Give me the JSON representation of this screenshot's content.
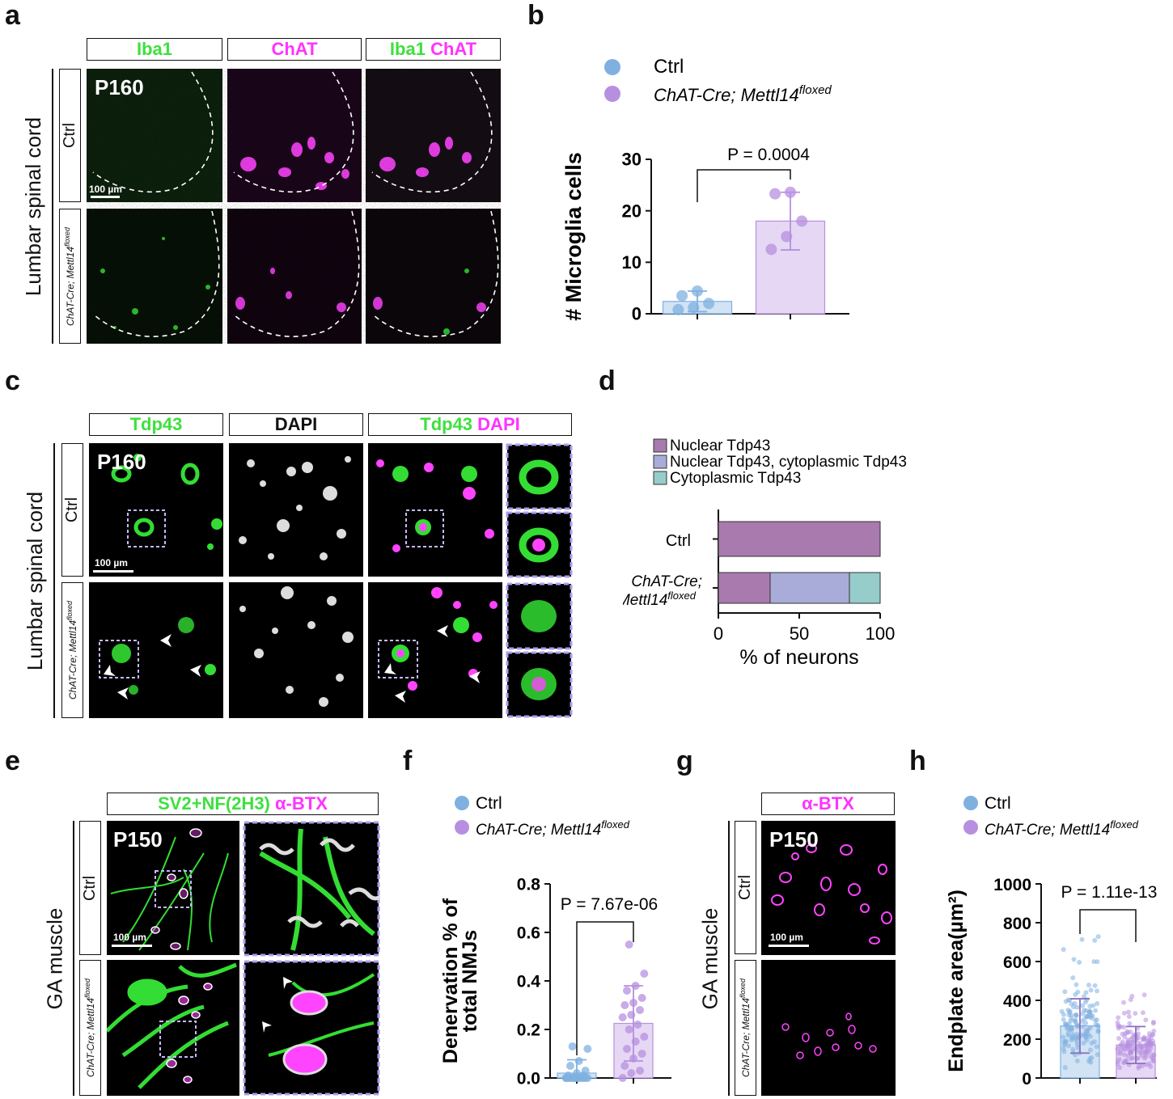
{
  "panels": {
    "a": {
      "label": "a",
      "channels": [
        "Iba1",
        "ChAT",
        "Iba1",
        "ChAT"
      ],
      "region": "Lumbar spinal cord",
      "rows": [
        "Ctrl",
        "ChAT-Cre; Mettl14",
        "floxed"
      ],
      "timepoint": "P160",
      "scalebar": "100 µm"
    },
    "b": {
      "label": "b",
      "legend": [
        "Ctrl",
        "ChAT-Cre; Mettl14",
        "floxed"
      ],
      "pvalue": "P = 0.0004"
    },
    "c": {
      "label": "c",
      "channels": [
        "Tdp43",
        "DAPI",
        "Tdp43",
        "DAPI"
      ],
      "region": "Lumbar spinal cord",
      "rows": [
        "Ctrl",
        "ChAT-Cre; Mettl14",
        "floxed"
      ],
      "timepoint": "P160",
      "scalebar": "100 µm"
    },
    "d": {
      "label": "d",
      "legend": [
        "Nuclear Tdp43",
        "Nuclear Tdp43, cytoplasmic Tdp43",
        "Cytoplasmic Tdp43"
      ],
      "cat_ctrl": "Ctrl",
      "cat_ko": [
        "ChAT-Cre;",
        "Mettl14",
        "floxed"
      ]
    },
    "e": {
      "label": "e",
      "channel_a": "SV2+NF(2H3)",
      "channel_b": "α-BTX",
      "region": "GA muscle",
      "rows": [
        "Ctrl",
        "ChAT-Cre; Mettl14",
        "floxed"
      ],
      "timepoint": "P150",
      "scalebar": "100 µm"
    },
    "f": {
      "label": "f",
      "legend": [
        "Ctrl",
        "ChAT-Cre; Mettl14",
        "floxed"
      ],
      "pvalue": "P = 7.67e-06"
    },
    "g": {
      "label": "g",
      "channel": "α-BTX",
      "region": "GA muscle",
      "rows": [
        "Ctrl",
        "ChAT-Cre; Mettl14",
        "floxed"
      ],
      "timepoint": "P150",
      "scalebar": "100 µm"
    },
    "h": {
      "label": "h",
      "legend": [
        "Ctrl",
        "ChAT-Cre; Mettl14",
        "floxed"
      ],
      "pvalue": "P = 1.11e-13"
    }
  },
  "colors": {
    "ctrl": "#7fb0e0",
    "ko": "#b78fe0",
    "nuclear": "#a87aae",
    "both": "#a9acd8",
    "cyto": "#96ccca"
  },
  "chart_data": [
    {
      "id": "b",
      "type": "bar",
      "categories": [
        "Ctrl",
        "ChAT-Cre; Mettl14floxed"
      ],
      "values": [
        2.4,
        18.0
      ],
      "errors": [
        2.0,
        5.6
      ],
      "points": [
        [
          0.8,
          1.2,
          2.0,
          3.5,
          4.4
        ],
        [
          12.5,
          15.0,
          18.0,
          23.3,
          23.6
        ]
      ],
      "ylabel": "# Microglia cells",
      "ylim": [
        0,
        30
      ],
      "yticks": [
        0,
        10,
        20,
        30
      ],
      "pvalue": "P = 0.0004",
      "ytick_labels": [
        "0",
        "10",
        "20",
        "30"
      ]
    },
    {
      "id": "d",
      "type": "bar",
      "orientation": "horizontal-stacked",
      "categories": [
        "Ctrl",
        "ChAT-Cre; Mettl14floxed"
      ],
      "series": [
        {
          "name": "Nuclear Tdp43",
          "values": [
            100,
            32
          ]
        },
        {
          "name": "Nuclear Tdp43, cytoplasmic Tdp43",
          "values": [
            0,
            49
          ]
        },
        {
          "name": "Cytoplasmic Tdp43",
          "values": [
            0,
            19
          ]
        }
      ],
      "xlabel": "% of neurons",
      "xlim": [
        0,
        100
      ],
      "xticks": [
        0,
        50,
        100
      ],
      "xtick_labels": [
        "0",
        "50",
        "100"
      ]
    },
    {
      "id": "f",
      "type": "bar",
      "categories": [
        "Ctrl",
        "ChAT-Cre; Mettl14floxed"
      ],
      "values": [
        0.02,
        0.225
      ],
      "errors": [
        0.055,
        0.155
      ],
      "points": [
        [
          0.0,
          0.0,
          0.0,
          0.0,
          0.0,
          0.0,
          0.0,
          0.0,
          0.0,
          0.0,
          0.0,
          0.0,
          0.0,
          0.01,
          0.01,
          0.02,
          0.03,
          0.05,
          0.07,
          0.12,
          0.13
        ],
        [
          0.0,
          0.02,
          0.03,
          0.05,
          0.08,
          0.1,
          0.12,
          0.15,
          0.17,
          0.2,
          0.22,
          0.25,
          0.26,
          0.28,
          0.3,
          0.31,
          0.33,
          0.36,
          0.38,
          0.43,
          0.55
        ]
      ],
      "ylabel": [
        "Denervation % of",
        "total NMJs"
      ],
      "ylim": [
        0,
        0.8
      ],
      "yticks": [
        0.0,
        0.2,
        0.4,
        0.6,
        0.8
      ],
      "pvalue": "P = 7.67e-06",
      "ytick_labels": [
        "0.0",
        "0.2",
        "0.4",
        "0.6",
        "0.8"
      ]
    },
    {
      "id": "h",
      "type": "bar",
      "categories": [
        "Ctrl",
        "ChAT-Cre; Mettl14floxed"
      ],
      "values": [
        268,
        170
      ],
      "errors": [
        140,
        95
      ],
      "ylabel": "Endplate area(µm²)",
      "ylim": [
        0,
        1000
      ],
      "yticks": [
        0,
        200,
        400,
        600,
        800,
        1000
      ],
      "pvalue": "P = 1.11e-13",
      "ytick_labels": [
        "0",
        "200",
        "400",
        "600",
        "800",
        "1000"
      ]
    }
  ]
}
